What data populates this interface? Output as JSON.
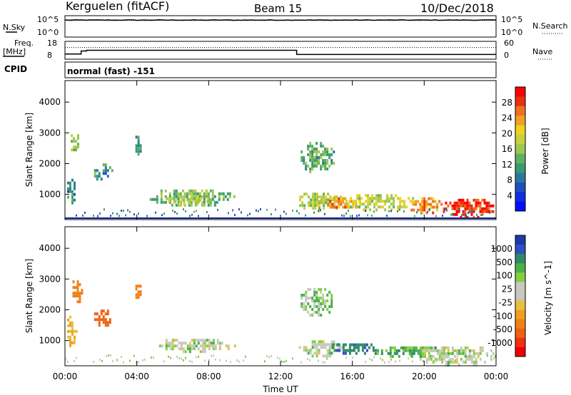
{
  "header": {
    "station": "Kerguelen (fitACF)",
    "beam": "Beam 15",
    "date": "10/Dec/2018"
  },
  "nsky_panel": {
    "left_label": "N.Sky",
    "left_ticks": [
      "10^5",
      "10^0"
    ],
    "right_label": "N.Search",
    "right_ticks": [
      "10^5",
      "10^0"
    ]
  },
  "freq_panel": {
    "left_label_top": "Freq.",
    "left_label_unit": "[MHz]",
    "left_ticks": [
      "18",
      "8"
    ],
    "right_label": "Nave",
    "right_ticks": [
      "60",
      "0"
    ],
    "cpid_label": "CPID",
    "mode_text": "normal (fast) -151"
  },
  "power_panel": {
    "ylabel": "Slant Range [km]",
    "yticks": [
      "4000",
      "3000",
      "2000",
      "1000"
    ],
    "colorbar_label": "Power [dB]",
    "colorbar_ticks": [
      "28",
      "24",
      "20",
      "16",
      "12",
      "8",
      "4"
    ],
    "colorbar_colors": [
      "#ff0000",
      "#e83010",
      "#f07020",
      "#f0a020",
      "#f0d020",
      "#c8d040",
      "#9cc850",
      "#60b060",
      "#3a9a70",
      "#2a7aa0",
      "#2050c0",
      "#1030e0",
      "#0010ff"
    ]
  },
  "velocity_panel": {
    "ylabel": "Slant Range [km]",
    "yticks": [
      "4000",
      "3000",
      "2000",
      "1000"
    ],
    "colorbar_label": "Velocity [m s^-1]",
    "colorbar_ticks": [
      "1000",
      "500",
      "100",
      "25",
      "-25",
      "-100",
      "-500",
      "-1000"
    ],
    "colorbar_colors": [
      "#1a3aa8",
      "#3050c0",
      "#2f8a6a",
      "#4bb04a",
      "#80d040",
      "#c8c8c0",
      "#c8c8c0",
      "#e8c040",
      "#f0a020",
      "#f08018",
      "#f06010",
      "#f03010",
      "#f00000"
    ]
  },
  "time_axis": {
    "label": "Time UT",
    "ticks": [
      "00:00",
      "04:00",
      "08:00",
      "12:00",
      "16:00",
      "20:00",
      "00:00"
    ]
  },
  "chart_data": {
    "type": "heatmap",
    "x_unit": "hours UT",
    "xlim": [
      0,
      24
    ],
    "y_unit": "km",
    "ylim": [
      180,
      4700
    ],
    "freq_steps": [
      {
        "t_start": 0,
        "t_end": 0.9,
        "freq_mhz": 10.5
      },
      {
        "t_start": 0.9,
        "t_end": 1.2,
        "freq_mhz": 12.5
      },
      {
        "t_start": 1.2,
        "t_end": 12.9,
        "freq_mhz": 13.0
      },
      {
        "t_start": 12.9,
        "t_end": 24,
        "freq_mhz": 10.2
      }
    ],
    "nave_level": 41,
    "nsky_level": 4.2,
    "power_regions": [
      {
        "t0": 0.2,
        "t1": 0.8,
        "r0": 2300,
        "r1": 3050,
        "db": 14
      },
      {
        "t0": 0.0,
        "t1": 0.6,
        "r0": 700,
        "r1": 1600,
        "db": 8
      },
      {
        "t0": 1.5,
        "t1": 2.6,
        "r0": 1450,
        "r1": 2100,
        "db": 10
      },
      {
        "t0": 3.8,
        "t1": 4.2,
        "r0": 2200,
        "r1": 3000,
        "db": 10
      },
      {
        "t0": 4.6,
        "t1": 9.6,
        "r0": 650,
        "r1": 1250,
        "db": 13
      },
      {
        "t0": 5.5,
        "t1": 8.0,
        "r0": 700,
        "r1": 1000,
        "db": 17
      },
      {
        "t0": 12.8,
        "t1": 15.5,
        "r0": 500,
        "r1": 1150,
        "db": 16
      },
      {
        "t0": 13.0,
        "t1": 15.0,
        "r0": 1700,
        "r1": 2800,
        "db": 12
      },
      {
        "t0": 14.0,
        "t1": 16.5,
        "r0": 550,
        "r1": 1000,
        "db": 23
      },
      {
        "t0": 15.5,
        "t1": 19.5,
        "r0": 500,
        "r1": 1100,
        "db": 17
      },
      {
        "t0": 19.0,
        "t1": 21.0,
        "r0": 400,
        "r1": 1000,
        "db": 23
      },
      {
        "t0": 20.8,
        "t1": 24.0,
        "r0": 250,
        "r1": 950,
        "db": 28
      }
    ],
    "velocity_regions": [
      {
        "t0": 0.3,
        "t1": 0.9,
        "r0": 2200,
        "r1": 3050,
        "v": -300
      },
      {
        "t0": 0.0,
        "t1": 0.6,
        "r0": 800,
        "r1": 1900,
        "v": -100
      },
      {
        "t0": 1.5,
        "t1": 2.6,
        "r0": 1500,
        "r1": 2100,
        "v": -600
      },
      {
        "t0": 3.8,
        "t1": 4.2,
        "r0": 2300,
        "r1": 3000,
        "v": -300
      },
      {
        "t0": 5.0,
        "t1": 9.5,
        "r0": 650,
        "r1": 1150,
        "v": 0
      },
      {
        "t0": 12.9,
        "t1": 15.5,
        "r0": 500,
        "r1": 1100,
        "v": 0
      },
      {
        "t0": 13.0,
        "t1": 15.0,
        "r0": 1800,
        "r1": 2800,
        "v": 20
      },
      {
        "t0": 14.5,
        "t1": 17.5,
        "r0": 600,
        "r1": 1000,
        "v": 80
      },
      {
        "t0": 17.0,
        "t1": 21.0,
        "r0": 500,
        "r1": 900,
        "v": 40
      },
      {
        "t0": 19.5,
        "t1": 24.0,
        "r0": 200,
        "r1": 900,
        "v": 0
      }
    ]
  }
}
